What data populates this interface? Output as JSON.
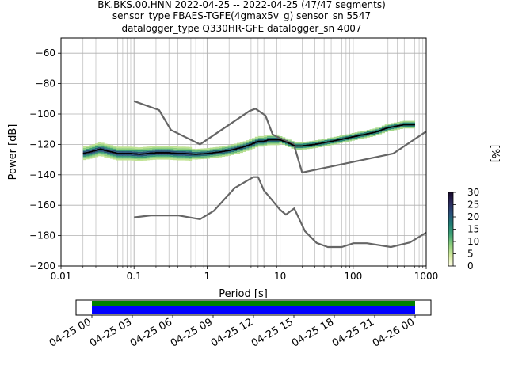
{
  "title_lines": [
    "BK.BKS.00.HNN   2022-04-25 -- 2022-04-25  (47/47 segments)",
    "sensor_type FBAES-TGFE(4gmax5v_g) sensor_sn 5547",
    "datalogger_type Q330HR-GFE datalogger_sn 4007"
  ],
  "chart_data": {
    "type": "line",
    "xlabel": "Period [s]",
    "ylabel": "Power [dB]",
    "x_scale": "log",
    "xlim": [
      0.01,
      1000
    ],
    "ylim": [
      -200,
      -50
    ],
    "x_ticks": [
      {
        "value": 0.01,
        "label": "0.01"
      },
      {
        "value": 0.1,
        "label": "0.1"
      },
      {
        "value": 1,
        "label": "1"
      },
      {
        "value": 10,
        "label": "10"
      },
      {
        "value": 100,
        "label": "100"
      },
      {
        "value": 1000,
        "label": "1000"
      }
    ],
    "y_ticks": [
      -200,
      -180,
      -160,
      -140,
      -120,
      -100,
      -80,
      -60
    ],
    "grid": true,
    "colorbar": {
      "label": "[%]",
      "ticks": [
        0,
        5,
        10,
        15,
        20,
        25,
        30
      ],
      "range": [
        0,
        30
      ],
      "colors": [
        "#fffde6",
        "#d4ea9e",
        "#8ecf7d",
        "#3fa276",
        "#1f7b73",
        "#2a4f7a",
        "#2b2a5c",
        "#180a2b"
      ]
    },
    "series": [
      {
        "role": "model-high",
        "color": "#666666",
        "x": [
          0.1,
          0.22,
          0.32,
          0.8,
          3.8,
          4.6,
          6.3,
          7.9,
          10,
          15.4,
          20,
          354.8,
          1000
        ],
        "y": [
          -91.5,
          -97.4,
          -110.5,
          -120.0,
          -98.0,
          -96.5,
          -101.0,
          -113.5,
          -116.0,
          -120.0,
          -138.5,
          -126.0,
          -111.5
        ]
      },
      {
        "role": "model-low",
        "color": "#666666",
        "x": [
          0.1,
          0.17,
          0.4,
          0.8,
          1.24,
          2.4,
          4.3,
          5,
          6,
          10,
          12,
          15.6,
          21.9,
          31.6,
          45,
          70,
          101,
          154,
          328,
          600,
          1000
        ],
        "y": [
          -168,
          -166.7,
          -166.7,
          -169.2,
          -163.7,
          -148.6,
          -141.5,
          -141.5,
          -150.2,
          -163.0,
          -166.2,
          -162.1,
          -177.1,
          -184.8,
          -187.5,
          -187.5,
          -185.0,
          -185.0,
          -187.5,
          -184.5,
          -178.0
        ]
      },
      {
        "role": "mode",
        "color": "#000000",
        "x": [
          0.02,
          0.025,
          0.03,
          0.035,
          0.04,
          0.05,
          0.06,
          0.07,
          0.09,
          0.12,
          0.15,
          0.2,
          0.3,
          0.4,
          0.5,
          0.7,
          1,
          1.5,
          2,
          3,
          4,
          5,
          6,
          7,
          8,
          10,
          13,
          16,
          20,
          30,
          50,
          80,
          100,
          200,
          300,
          500,
          700
        ],
        "y": [
          -126,
          -125,
          -124,
          -123,
          -124,
          -125,
          -126,
          -126,
          -126,
          -126.5,
          -126,
          -125.5,
          -125.5,
          -126,
          -126,
          -126.5,
          -126,
          -125,
          -124,
          -122,
          -120,
          -118,
          -118,
          -117,
          -117,
          -117,
          -119,
          -121,
          -121,
          -120,
          -118,
          -116,
          -115,
          -112,
          -109,
          -107,
          -107
        ]
      }
    ]
  },
  "timeline": {
    "tick_labels": [
      "04-25 00",
      "04-25 03",
      "04-25 06",
      "04-25 09",
      "04-25 12",
      "04-25 15",
      "04-25 18",
      "04-25 21",
      "04-26 00"
    ],
    "bar_colors": [
      "#008000",
      "#0000ff"
    ]
  }
}
